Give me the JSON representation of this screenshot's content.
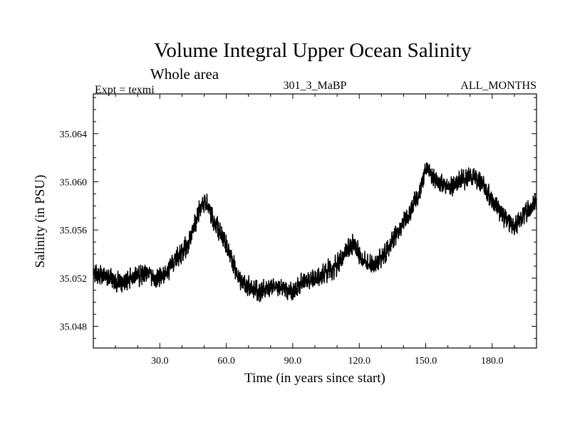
{
  "chart_data": {
    "type": "line",
    "title": "Volume Integral Upper Ocean Salinity",
    "subtitle": "Whole area",
    "experiment_label": "Expt = texmi",
    "run_label": "301_3_MaBP",
    "months_label": "ALL_MONTHS",
    "xlabel": "Time (in years since start)",
    "ylabel": "Salinity (in PSU)",
    "xlim": [
      0,
      200
    ],
    "ylim": [
      35.0462,
      35.0673
    ],
    "x_ticks": [
      30,
      60,
      90,
      120,
      150,
      180
    ],
    "x_tick_labels": [
      "30.0",
      "60.0",
      "90.0",
      "120.0",
      "150.0",
      "180.0"
    ],
    "y_ticks": [
      35.048,
      35.052,
      35.056,
      35.06,
      35.064
    ],
    "y_tick_labels": [
      "35.048",
      "35.052",
      "35.056",
      "35.060",
      "35.064"
    ],
    "series": [
      {
        "name": "salinity",
        "color": "#000000",
        "trend": {
          "x": [
            0,
            5,
            10,
            15,
            20,
            25,
            28,
            33,
            38,
            43,
            48,
            51,
            55,
            60,
            65,
            70,
            75,
            80,
            85,
            90,
            95,
            100,
            105,
            110,
            115,
            118,
            122,
            127,
            132,
            137,
            142,
            147,
            150,
            155,
            160,
            165,
            170,
            175,
            180,
            185,
            190,
            195,
            200
          ],
          "values": [
            35.0522,
            35.0522,
            35.0517,
            35.0518,
            35.0522,
            35.0526,
            35.0518,
            35.0525,
            35.0537,
            35.0548,
            35.0578,
            35.0583,
            35.0565,
            35.0548,
            35.0522,
            35.0512,
            35.0508,
            35.0512,
            35.0512,
            35.0508,
            35.0518,
            35.0518,
            35.0525,
            35.053,
            35.0545,
            35.0548,
            35.0533,
            35.0532,
            35.054,
            35.0558,
            35.0572,
            35.059,
            35.0612,
            35.06,
            35.0595,
            35.06,
            35.0605,
            35.06,
            35.0585,
            35.0572,
            35.0562,
            35.0575,
            35.0583
          ]
        },
        "variability": 0.0013
      }
    ]
  }
}
